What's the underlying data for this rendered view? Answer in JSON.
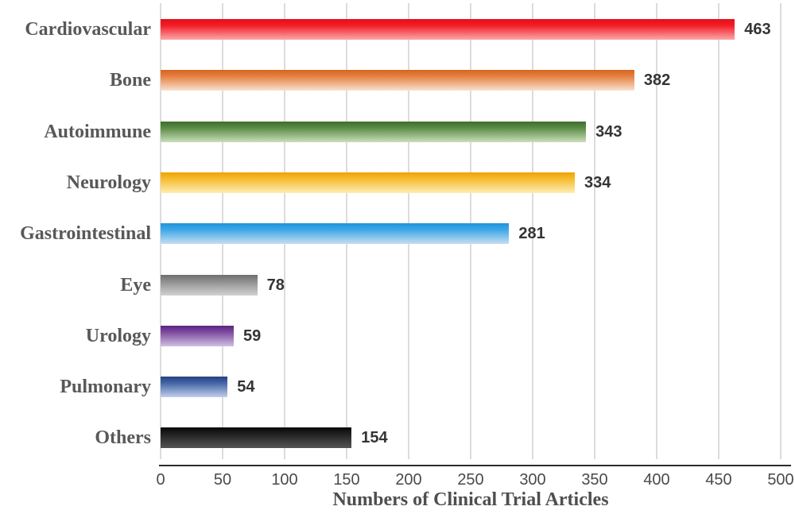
{
  "chart_data": {
    "type": "bar",
    "orientation": "horizontal",
    "title": "",
    "xlabel": "Numbers of Clinical Trial Articles",
    "ylabel": "",
    "categories": [
      "Cardiovascular",
      "Bone",
      "Autoimmune",
      "Neurology",
      "Gastrointestinal",
      "Eye",
      "Urology",
      "Pulmonary",
      "Others"
    ],
    "values": [
      463,
      382,
      343,
      334,
      281,
      78,
      59,
      54,
      154
    ],
    "value_labels": [
      "463",
      "382",
      "343",
      "334",
      "281",
      "78",
      "59",
      "54",
      "154"
    ],
    "xlim": [
      0,
      500
    ],
    "x_ticks": [
      0,
      50,
      100,
      150,
      200,
      250,
      300,
      350,
      400,
      450,
      500
    ],
    "grid": "vertical gridlines at every 50 units",
    "legend_position": "none",
    "bar_gradients": [
      {
        "name": "red",
        "top": "#e60f18",
        "mid": "#f21b24",
        "bottom": "#fba8ab"
      },
      {
        "name": "orange",
        "top": "#d4651f",
        "mid": "#e57f40",
        "bottom": "#f8e0cf"
      },
      {
        "name": "green",
        "top": "#3f6e2e",
        "mid": "#5a8a45",
        "bottom": "#c9dfba"
      },
      {
        "name": "gold",
        "top": "#efa400",
        "mid": "#f6bb2e",
        "bottom": "#fdedb3"
      },
      {
        "name": "blue",
        "top": "#1f93da",
        "mid": "#3ba7e6",
        "bottom": "#c6def2"
      },
      {
        "name": "gray",
        "top": "#6e6e6e",
        "mid": "#8d8d8d",
        "bottom": "#d2d2d2"
      },
      {
        "name": "purple",
        "top": "#5a2383",
        "mid": "#7b499d",
        "bottom": "#d0c0e2"
      },
      {
        "name": "navy",
        "top": "#25407d",
        "mid": "#4263a6",
        "bottom": "#c2cfe8"
      },
      {
        "name": "black",
        "top": "#080808",
        "mid": "#1f1f1f",
        "bottom": "#555555"
      }
    ],
    "colors": {
      "background": "#ffffff",
      "gridline": "#dcdcdc",
      "axis_line": "#2b2b2b",
      "category_label": "#57585a",
      "value_label": "#333435",
      "tick_label": "#4a4a4a",
      "axis_title": "#4d4e50"
    }
  }
}
